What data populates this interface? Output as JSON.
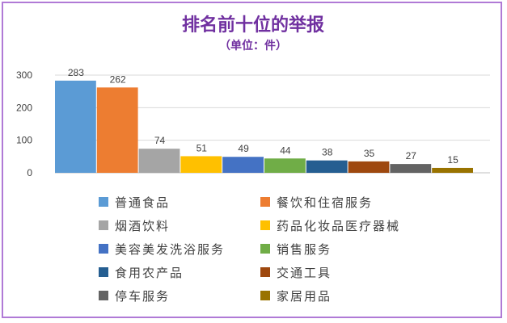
{
  "chart_data": {
    "type": "bar",
    "title": "排名前十位的举报",
    "subtitle": "（单位：件）",
    "xlabel": "",
    "ylabel": "",
    "ylim": [
      0,
      300
    ],
    "yticks": [
      0,
      100,
      200,
      300
    ],
    "grid": true,
    "legend": "bottom",
    "categories": [
      "普通食品",
      "餐饮和住宿服务",
      "烟酒饮料",
      "药品化妆品医疗器械",
      "美容美发洗浴服务",
      "销售服务",
      "食用农产品",
      "交通工具",
      "停车服务",
      "家居用品"
    ],
    "values": [
      283,
      262,
      74,
      51,
      49,
      44,
      38,
      35,
      27,
      15
    ],
    "colors": [
      "#5b9bd5",
      "#ed7d31",
      "#a5a5a5",
      "#ffc000",
      "#4472c4",
      "#70ad47",
      "#255e91",
      "#9e480e",
      "#636363",
      "#997300"
    ]
  }
}
